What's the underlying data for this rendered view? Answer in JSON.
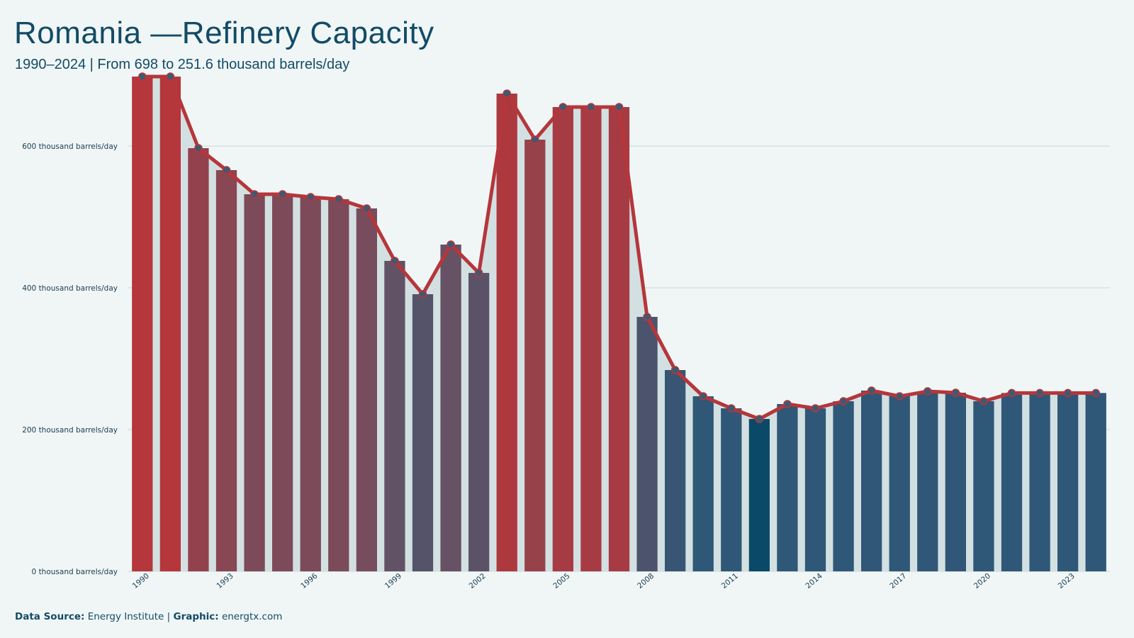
{
  "title": "Romania —Refinery Capacity",
  "subtitle": "1990–2024 | From 698 to 251.6 thousand barrels/day",
  "footer": {
    "source_label": "Data Source:",
    "source_value": "Energy Institute",
    "separator": "|",
    "graphic_label": "Graphic:",
    "graphic_value": "energtx.com"
  },
  "colors": {
    "high": "#b5363b",
    "mid": "#6a5163",
    "low": "#2f5777",
    "lowest": "#0a4a68",
    "line": "#b5363b",
    "marker_fill": "#3c5a74",
    "area": "#d3e0e2"
  },
  "chart_data": {
    "type": "bar",
    "overlay": "line",
    "title": "Romania —Refinery Capacity",
    "subtitle": "1990–2024 | From 698 to 251.6 thousand barrels/day",
    "xlabel": "",
    "ylabel": "",
    "unit": "thousand barrels/day",
    "ylim": [
      0,
      720
    ],
    "yticks": [
      0,
      200,
      400,
      600
    ],
    "ytick_labels": [
      "0 thousand barrels/day",
      "200 thousand barrels/day",
      "400 thousand barrels/day",
      "600 thousand barrels/day"
    ],
    "xtick_labels": [
      "1990",
      "1993",
      "1996",
      "1999",
      "2002",
      "2005",
      "2008",
      "2011",
      "2014",
      "2017",
      "2020",
      "2023"
    ],
    "grid": "horizontal",
    "categories": [
      1990,
      1991,
      1992,
      1993,
      1994,
      1995,
      1996,
      1997,
      1998,
      1999,
      2000,
      2001,
      2002,
      2003,
      2004,
      2005,
      2006,
      2007,
      2008,
      2009,
      2010,
      2011,
      2012,
      2013,
      2014,
      2015,
      2016,
      2017,
      2018,
      2019,
      2020,
      2021,
      2022,
      2023,
      2024
    ],
    "values": [
      698,
      698,
      597,
      566,
      532,
      532,
      528,
      525,
      512,
      438,
      391,
      461,
      421,
      674,
      609,
      655,
      655,
      655,
      359,
      284,
      247,
      230,
      215,
      236,
      230,
      240,
      255,
      247,
      254,
      252,
      240,
      251.6,
      251.6,
      251.6,
      251.6
    ]
  }
}
